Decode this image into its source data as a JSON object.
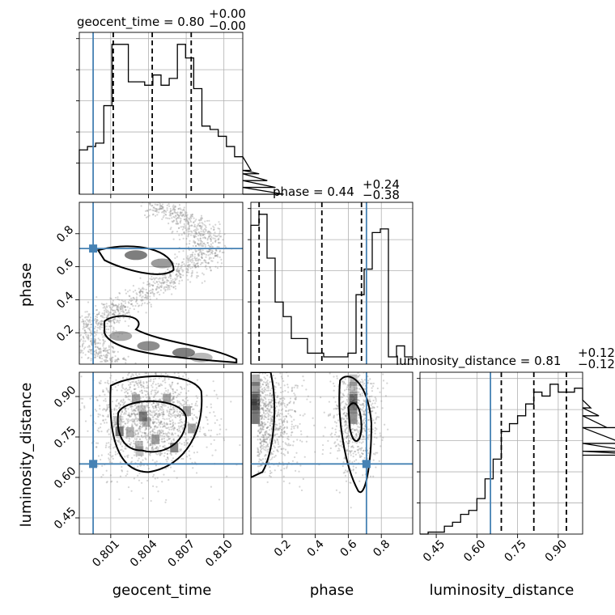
{
  "truth_color": "#4682b4",
  "chart_data": {
    "type": "corner",
    "parameters": [
      "geocent_time",
      "phase",
      "luminosity_distance"
    ],
    "ranges": {
      "geocent_time": [
        0.7985,
        0.8115
      ],
      "phase": [
        0.01,
        0.99
      ],
      "luminosity_distance": [
        0.39,
        0.99
      ]
    },
    "ticks": {
      "geocent_time": [
        "0.801",
        "0.804",
        "0.807",
        "0.810"
      ],
      "phase": [
        "0.2",
        "0.4",
        "0.6",
        "0.8"
      ],
      "luminosity_distance": [
        "0.45",
        "0.60",
        "0.75",
        "0.90"
      ]
    },
    "truths": {
      "geocent_time": 0.7996,
      "phase": 0.71,
      "luminosity_distance": 0.65
    },
    "titles": {
      "geocent_time": {
        "name": "geocent_time",
        "median": "0.80",
        "plus": "+0.00",
        "minus": "−0.00"
      },
      "phase": {
        "name": "phase",
        "median": "0.44",
        "plus": "+0.24",
        "minus": "−0.38"
      },
      "luminosity_distance": {
        "name": "luminosity_distance",
        "median": "0.81",
        "plus": "+0.12",
        "minus": "−0.12"
      }
    },
    "quantiles": {
      "geocent_time": [
        0.8012,
        0.8043,
        0.8074
      ],
      "phase": [
        0.06,
        0.44,
        0.68
      ],
      "luminosity_distance": [
        0.69,
        0.81,
        0.93
      ]
    },
    "histograms": {
      "geocent_time": {
        "edges_start": 0.7985,
        "bin_width": 0.00065,
        "heights": [
          13,
          14,
          15,
          26,
          44,
          44,
          33,
          33,
          32,
          35,
          32,
          34,
          44,
          40,
          31,
          20,
          19,
          17,
          14,
          11,
          11,
          7,
          6,
          4,
          2,
          0
        ]
      },
      "phase": {
        "edges_start": 0.01,
        "bin_width": 0.049,
        "heights": [
          38,
          41,
          29,
          17,
          13,
          7,
          7,
          3,
          3,
          2,
          2,
          2,
          3,
          19,
          26,
          36,
          37,
          2,
          5,
          2
        ]
      },
      "luminosity_distance": {
        "edges_start": 0.39,
        "bin_width": 0.03,
        "heights": [
          0,
          0.5,
          0.5,
          2,
          3,
          5,
          6,
          9,
          14,
          19,
          26,
          28,
          30,
          33,
          36,
          35,
          38,
          36,
          36,
          37,
          34,
          32,
          30,
          27,
          27,
          23,
          21,
          21,
          21,
          20
        ]
      }
    },
    "pairs": [
      {
        "x": "geocent_time",
        "y": "phase"
      },
      {
        "x": "geocent_time",
        "y": "luminosity_distance"
      },
      {
        "x": "phase",
        "y": "luminosity_distance"
      }
    ],
    "grid": true
  }
}
